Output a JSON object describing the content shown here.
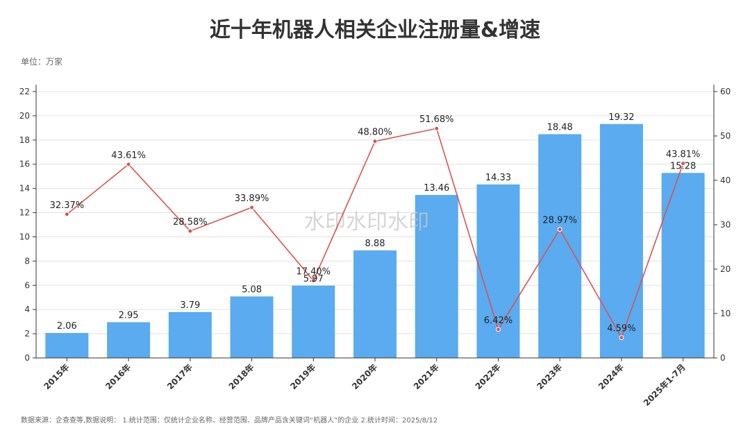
{
  "title": "近十年机器人相关企业注册量&增速",
  "unit_label": "单位：万家",
  "footer": "数据来源：企查查等,数据说明： 1.统计范围：仅统计企业名称、经营范围、品牌产品含关键词“机器人”的企业 2.统计时间：2025/8/12",
  "watermark": "水印水印水印",
  "colors": {
    "bar": "#5aabf0",
    "line": "#d9534f",
    "grid": "#e0e0e0",
    "axis": "#333333"
  },
  "chart_data": {
    "type": "bar",
    "categories": [
      "2015年",
      "2016年",
      "2017年",
      "2018年",
      "2019年",
      "2020年",
      "2021年",
      "2022年",
      "2023年",
      "2024年",
      "2025年1-7月"
    ],
    "series": [
      {
        "type": "bar",
        "axis": "left",
        "values": [
          2.06,
          2.95,
          3.79,
          5.08,
          5.97,
          8.88,
          13.46,
          14.33,
          18.48,
          19.32,
          15.28
        ],
        "labels": [
          "2.06",
          "2.95",
          "3.79",
          "5.08",
          "5.97",
          "8.88",
          "13.46",
          "14.33",
          "18.48",
          "19.32",
          "15.28"
        ]
      },
      {
        "type": "line",
        "axis": "right",
        "values": [
          32.37,
          43.61,
          28.58,
          33.89,
          17.4,
          48.8,
          51.68,
          6.42,
          28.97,
          4.59,
          43.81
        ],
        "labels": [
          "32.37%",
          "43.61%",
          "28.58%",
          "33.89%",
          "17.40%",
          "48.80%",
          "51.68%",
          "6.42%",
          "28.97%",
          "4.59%",
          "43.81%"
        ]
      }
    ],
    "y_left": {
      "ylim": [
        0,
        22
      ],
      "ticks": [
        "0",
        "2",
        "4",
        "6",
        "8",
        "10",
        "12",
        "14",
        "16",
        "18",
        "20",
        "22"
      ]
    },
    "y_right": {
      "ylim": [
        0,
        60
      ],
      "ticks": [
        "0",
        "10",
        "20",
        "30",
        "40",
        "50",
        "60"
      ]
    },
    "grid": true
  }
}
